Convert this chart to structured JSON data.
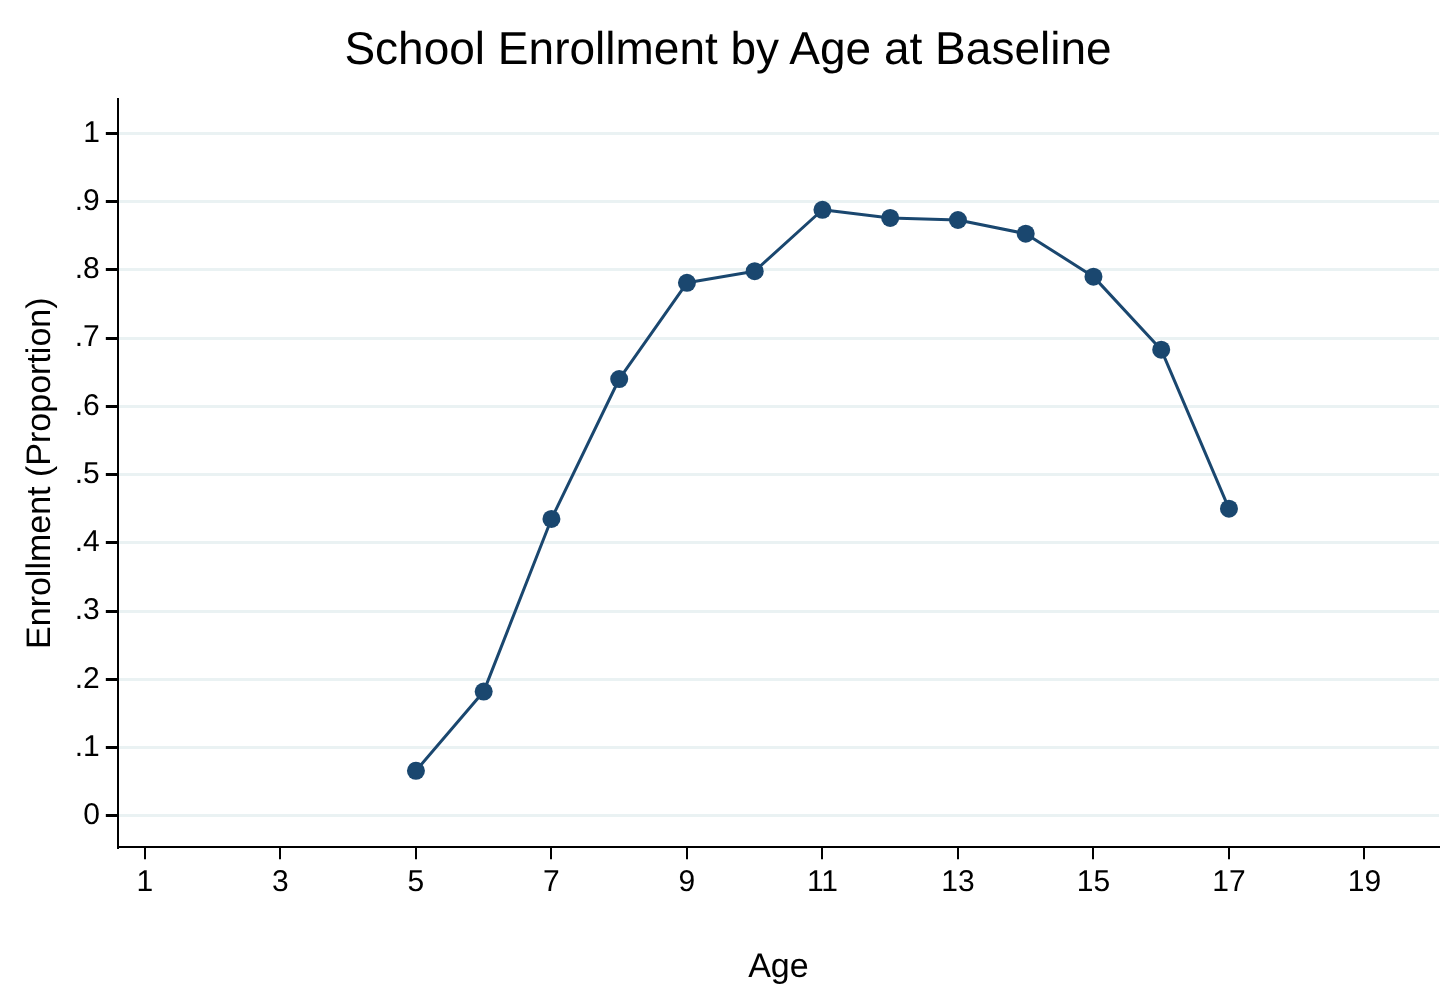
{
  "chart_data": {
    "type": "line",
    "title": "School Enrollment by Age at Baseline",
    "xlabel": "Age",
    "ylabel": "Enrollment (Proportion)",
    "x": [
      5,
      6,
      7,
      8,
      9,
      10,
      11,
      12,
      13,
      14,
      15,
      16,
      17
    ],
    "series": [
      {
        "color": "#1a476f",
        "values": [
          0.066,
          0.182,
          0.435,
          0.64,
          0.781,
          0.798,
          0.888,
          0.876,
          0.873,
          0.853,
          0.79,
          0.683,
          0.45
        ]
      }
    ],
    "xlim": [
      0.6,
      20.1
    ],
    "xticks": [
      1,
      3,
      5,
      7,
      9,
      11,
      13,
      15,
      17,
      19
    ],
    "ylim": [
      -0.046,
      1.05
    ],
    "yticks": [
      0,
      {
        "value": 0.1,
        "label": ".1"
      },
      {
        "value": 0.2,
        "label": ".2"
      },
      {
        "value": 0.3,
        "label": ".3"
      },
      {
        "value": 0.4,
        "label": ".4"
      },
      {
        "value": 0.5,
        "label": ".5"
      },
      {
        "value": 0.6,
        "label": ".6"
      },
      {
        "value": 0.7,
        "label": ".7"
      },
      {
        "value": 0.8,
        "label": ".8"
      },
      {
        "value": 0.9,
        "label": ".9"
      },
      1
    ],
    "grid": "y",
    "marker": "circle",
    "line_style": "solid",
    "legend": false
  }
}
